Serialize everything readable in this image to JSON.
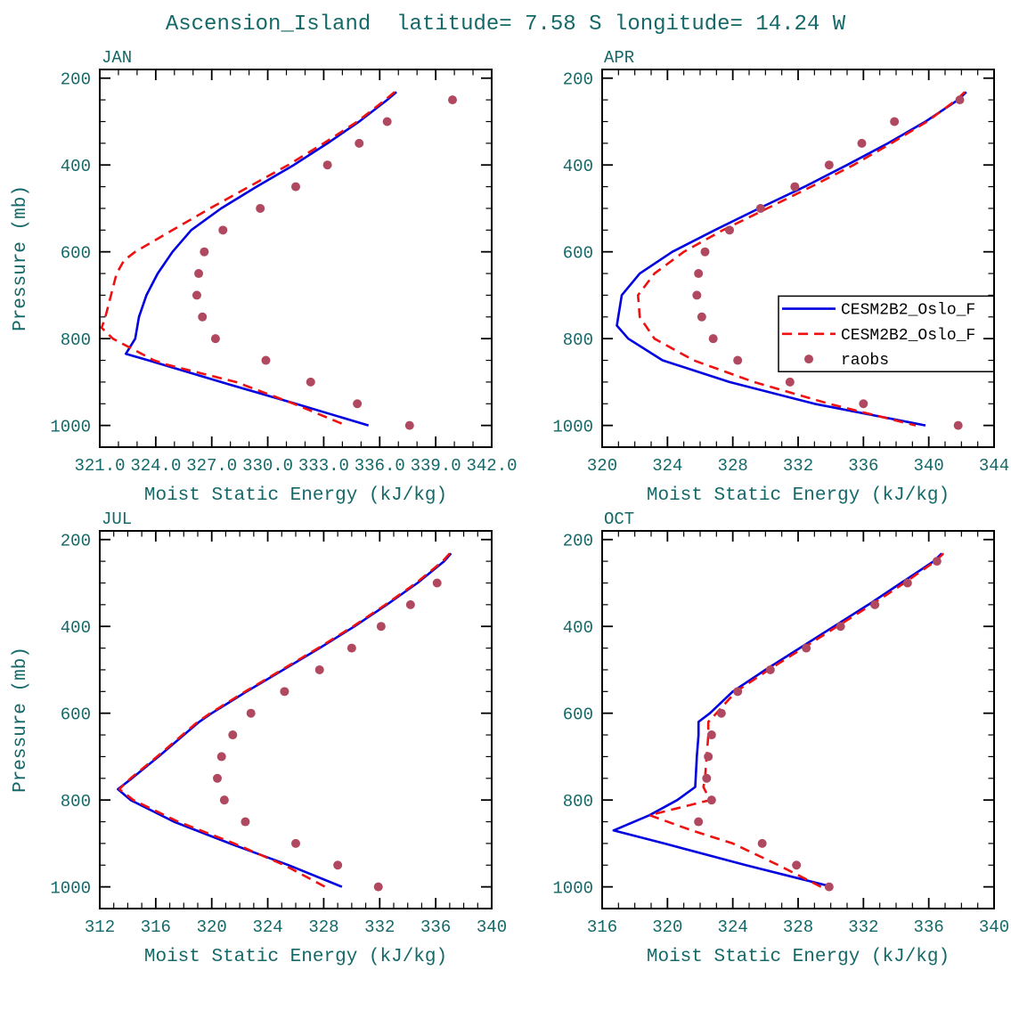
{
  "figure": {
    "title": "Ascension_Island  latitude= 7.58 S longitude= 14.24 W"
  },
  "colors": {
    "label_text": "#156868",
    "axis": "#000000",
    "model_blue": "#0000e0",
    "model_red": "#ee1111",
    "raobs": "#b0485f",
    "background": "#ffffff"
  },
  "legend": {
    "panel": "APR",
    "entries": [
      {
        "label": "CESM2B2_Oslo_F",
        "marker": "line-solid",
        "color_key": "model_blue"
      },
      {
        "label": "CESM2B2_Oslo_F",
        "marker": "line-dashed",
        "color_key": "model_red"
      },
      {
        "label": "raobs",
        "marker": "dot",
        "color_key": "raobs"
      }
    ]
  },
  "chart_data": [
    {
      "type": "line",
      "panel": "JAN",
      "xlabel": "Moist Static Energy (kJ/kg)",
      "ylabel": "Pressure (mb)",
      "xlim": [
        321,
        342
      ],
      "xticks": [
        321,
        324,
        327,
        330,
        333,
        336,
        339,
        342
      ],
      "xtick_labels": [
        "321.0",
        "324.0",
        "327.0",
        "330.0",
        "333.0",
        "336.0",
        "339.0",
        "342.0"
      ],
      "ylim": [
        180,
        1050
      ],
      "y_inverted": true,
      "yticks": [
        200,
        400,
        600,
        800,
        1000
      ],
      "ytick_labels": [
        "200",
        "400",
        "600",
        "800",
        "1000"
      ],
      "series": [
        {
          "name": "CESM2B2_Oslo_F",
          "style": "solid",
          "color_key": "model_blue",
          "pressure": [
            232,
            250,
            300,
            350,
            400,
            450,
            500,
            550,
            600,
            650,
            700,
            750,
            800,
            835,
            850,
            900,
            950,
            1000
          ],
          "mse": [
            336.9,
            336.4,
            334.9,
            333.2,
            331.4,
            329.4,
            327.5,
            325.9,
            324.9,
            324.1,
            323.5,
            323.1,
            322.9,
            322.4,
            323.6,
            327.5,
            331.5,
            335.4
          ]
        },
        {
          "name": "CESM2B2_Oslo_F",
          "style": "dashed",
          "color_key": "model_red",
          "pressure": [
            232,
            250,
            300,
            350,
            400,
            450,
            500,
            550,
            600,
            620,
            650,
            700,
            750,
            775,
            800,
            850,
            860,
            900,
            950,
            1000
          ],
          "mse": [
            336.8,
            336.3,
            334.8,
            333.0,
            331.1,
            329.0,
            326.9,
            324.9,
            322.9,
            322.3,
            321.9,
            321.6,
            321.3,
            321.1,
            321.7,
            323.9,
            324.6,
            328.3,
            331.4,
            334.2
          ]
        },
        {
          "name": "raobs",
          "style": "dots",
          "color_key": "raobs",
          "pressure": [
            250,
            300,
            350,
            400,
            450,
            500,
            550,
            600,
            650,
            700,
            750,
            800,
            850,
            900,
            950,
            1000
          ],
          "mse": [
            339.9,
            336.4,
            334.9,
            333.2,
            331.5,
            329.6,
            327.6,
            326.6,
            326.3,
            326.2,
            326.5,
            327.2,
            329.9,
            332.3,
            334.8,
            337.6
          ]
        }
      ]
    },
    {
      "type": "line",
      "panel": "APR",
      "xlabel": "Moist Static Energy (kJ/kg)",
      "ylabel": "",
      "xlim": [
        320,
        344
      ],
      "xticks": [
        320,
        324,
        328,
        332,
        336,
        340,
        344
      ],
      "xtick_labels": [
        "320",
        "324",
        "328",
        "332",
        "336",
        "340",
        "344"
      ],
      "ylim": [
        180,
        1050
      ],
      "y_inverted": true,
      "yticks": [
        200,
        400,
        600,
        800,
        1000
      ],
      "ytick_labels": [
        "200",
        "400",
        "600",
        "800",
        "1000"
      ],
      "series": [
        {
          "name": "CESM2B2_Oslo_F",
          "style": "solid",
          "color_key": "model_blue",
          "pressure": [
            232,
            250,
            300,
            350,
            400,
            450,
            500,
            550,
            600,
            650,
            700,
            770,
            800,
            850,
            900,
            950,
            1000
          ],
          "mse": [
            342.3,
            341.8,
            339.8,
            337.5,
            335.0,
            332.4,
            329.6,
            326.9,
            324.3,
            322.3,
            321.2,
            320.9,
            321.6,
            323.7,
            327.8,
            333.0,
            339.8
          ]
        },
        {
          "name": "CESM2B2_Oslo_F",
          "style": "dashed",
          "color_key": "model_red",
          "pressure": [
            232,
            250,
            300,
            350,
            400,
            450,
            500,
            550,
            600,
            650,
            700,
            750,
            800,
            850,
            900,
            950,
            1000
          ],
          "mse": [
            342.2,
            341.7,
            339.9,
            337.7,
            335.4,
            332.8,
            330.1,
            327.4,
            325.0,
            323.2,
            322.2,
            322.3,
            323.2,
            325.6,
            329.3,
            333.9,
            339.2
          ]
        },
        {
          "name": "raobs",
          "style": "dots",
          "color_key": "raobs",
          "pressure": [
            250,
            300,
            350,
            400,
            450,
            500,
            550,
            600,
            650,
            700,
            750,
            800,
            850,
            900,
            950,
            1000
          ],
          "mse": [
            341.9,
            337.9,
            335.9,
            333.9,
            331.8,
            329.7,
            327.8,
            326.3,
            325.9,
            325.8,
            326.1,
            326.8,
            328.3,
            331.5,
            336.0,
            341.8
          ]
        }
      ]
    },
    {
      "type": "line",
      "panel": "JUL",
      "xlabel": "Moist Static Energy (kJ/kg)",
      "ylabel": "Pressure (mb)",
      "xlim": [
        312,
        340
      ],
      "xticks": [
        312,
        316,
        320,
        324,
        328,
        332,
        336,
        340
      ],
      "xtick_labels": [
        "312",
        "316",
        "320",
        "324",
        "328",
        "332",
        "336",
        "340"
      ],
      "ylim": [
        180,
        1050
      ],
      "y_inverted": true,
      "yticks": [
        200,
        400,
        600,
        800,
        1000
      ],
      "ytick_labels": [
        "200",
        "400",
        "600",
        "800",
        "1000"
      ],
      "series": [
        {
          "name": "CESM2B2_Oslo_F",
          "style": "solid",
          "color_key": "model_blue",
          "pressure": [
            232,
            250,
            300,
            350,
            400,
            450,
            500,
            550,
            600,
            620,
            650,
            700,
            750,
            775,
            800,
            850,
            900,
            950,
            1000
          ],
          "mse": [
            337.1,
            336.6,
            334.7,
            332.5,
            330.2,
            327.7,
            325.1,
            322.5,
            320.0,
            319.1,
            318.0,
            316.2,
            314.3,
            313.3,
            314.2,
            317.3,
            321.3,
            325.5,
            329.3
          ]
        },
        {
          "name": "CESM2B2_Oslo_F",
          "style": "dashed",
          "color_key": "model_red",
          "pressure": [
            232,
            250,
            300,
            350,
            400,
            450,
            500,
            550,
            600,
            620,
            650,
            700,
            750,
            775,
            800,
            850,
            900,
            950,
            1000
          ],
          "mse": [
            337.0,
            336.5,
            334.6,
            332.4,
            330.1,
            327.6,
            325.0,
            322.4,
            319.9,
            319.0,
            317.9,
            316.1,
            314.2,
            313.4,
            314.4,
            317.6,
            321.6,
            325.2,
            328.1
          ]
        },
        {
          "name": "raobs",
          "style": "dots",
          "color_key": "raobs",
          "pressure": [
            300,
            350,
            400,
            450,
            500,
            550,
            600,
            650,
            700,
            750,
            800,
            850,
            900,
            950,
            1000
          ],
          "mse": [
            336.1,
            334.2,
            332.1,
            330.0,
            327.7,
            325.2,
            322.8,
            321.5,
            320.7,
            320.4,
            320.9,
            322.4,
            326.0,
            329.0,
            331.9
          ]
        }
      ]
    },
    {
      "type": "line",
      "panel": "OCT",
      "xlabel": "Moist Static Energy (kJ/kg)",
      "ylabel": "",
      "xlim": [
        316,
        340
      ],
      "xticks": [
        316,
        320,
        324,
        328,
        332,
        336,
        340
      ],
      "xtick_labels": [
        "316",
        "320",
        "324",
        "328",
        "332",
        "336",
        "340"
      ],
      "ylim": [
        180,
        1050
      ],
      "y_inverted": true,
      "yticks": [
        200,
        400,
        600,
        800,
        1000
      ],
      "ytick_labels": [
        "200",
        "400",
        "600",
        "800",
        "1000"
      ],
      "series": [
        {
          "name": "CESM2B2_Oslo_F",
          "style": "solid",
          "color_key": "model_blue",
          "pressure": [
            232,
            250,
            300,
            350,
            400,
            450,
            500,
            550,
            600,
            620,
            650,
            700,
            770,
            800,
            835,
            870,
            900,
            950,
            1000
          ],
          "mse": [
            336.8,
            336.3,
            334.3,
            332.3,
            330.2,
            328.1,
            326.0,
            324.0,
            322.6,
            321.9,
            321.9,
            321.8,
            321.7,
            320.6,
            318.9,
            316.7,
            319.8,
            324.8,
            330.1
          ]
        },
        {
          "name": "CESM2B2_Oslo_F",
          "style": "dashed",
          "color_key": "model_red",
          "pressure": [
            232,
            250,
            300,
            350,
            400,
            450,
            500,
            550,
            600,
            620,
            650,
            700,
            750,
            770,
            800,
            835,
            870,
            900,
            950,
            1000
          ],
          "mse": [
            336.9,
            336.4,
            334.5,
            332.5,
            330.4,
            328.3,
            326.2,
            324.2,
            323.0,
            322.5,
            322.5,
            322.4,
            322.3,
            322.2,
            322.6,
            318.9,
            321.5,
            324.0,
            326.8,
            329.4
          ]
        },
        {
          "name": "raobs",
          "style": "dots",
          "color_key": "raobs",
          "pressure": [
            250,
            300,
            350,
            400,
            450,
            500,
            550,
            600,
            650,
            700,
            750,
            800,
            850,
            900,
            950,
            1000
          ],
          "mse": [
            336.5,
            334.7,
            332.7,
            330.6,
            328.5,
            326.3,
            324.3,
            323.3,
            322.7,
            322.5,
            322.4,
            322.7,
            321.9,
            325.8,
            327.9,
            329.9
          ]
        }
      ]
    }
  ]
}
